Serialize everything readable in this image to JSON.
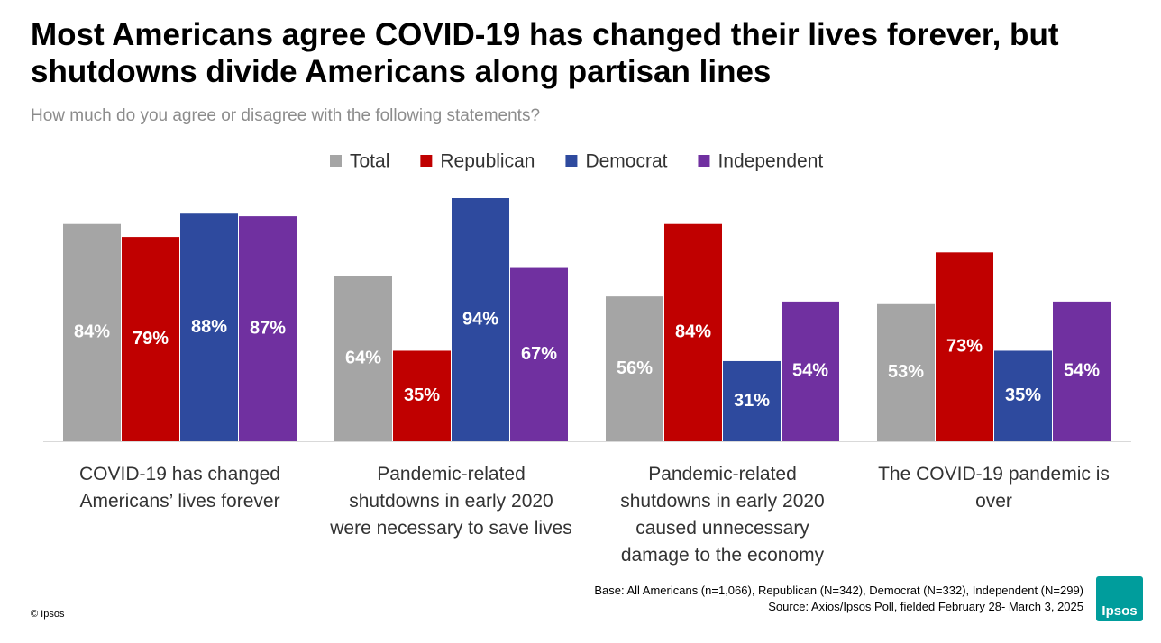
{
  "chart_data": {
    "type": "bar",
    "title": "Most Americans agree COVID-19 has changed their lives forever, but shutdowns divide Americans along partisan lines",
    "subtitle": "How much do you agree or disagree with the following statements?",
    "categories": [
      "COVID-19 has changed Americans’ lives forever",
      "Pandemic-related shutdowns in early 2020 were necessary to save lives",
      "Pandemic-related shutdowns in early 2020 caused unnecessary damage to the economy",
      "The COVID-19 pandemic is over"
    ],
    "series": [
      {
        "name": "Total",
        "color": "#a5a5a5",
        "values": [
          84,
          64,
          56,
          53
        ],
        "value_labels": [
          "84%",
          "64%",
          "56%",
          "53%"
        ]
      },
      {
        "name": "Republican",
        "color": "#c00000",
        "values": [
          79,
          35,
          84,
          73
        ],
        "value_labels": [
          "79%",
          "35%",
          "84%",
          "73%"
        ]
      },
      {
        "name": "Democrat",
        "color": "#2e4a9e",
        "values": [
          88,
          94,
          31,
          35
        ],
        "value_labels": [
          "88%",
          "94%",
          "31%",
          "35%"
        ]
      },
      {
        "name": "Independent",
        "color": "#7030a0",
        "values": [
          87,
          67,
          54,
          54
        ],
        "value_labels": [
          "87%",
          "67%",
          "54%",
          "54%"
        ]
      }
    ],
    "legend": "top",
    "base_note": "Base: All Americans (n=1,066), Republican (N=342), Democrat (N=332), Independent (N=299)",
    "source": "Source: Axios/Ipsos Poll, fielded February 28- March 3, 2025",
    "copyright": "© Ipsos",
    "logo": "Ipsos"
  }
}
